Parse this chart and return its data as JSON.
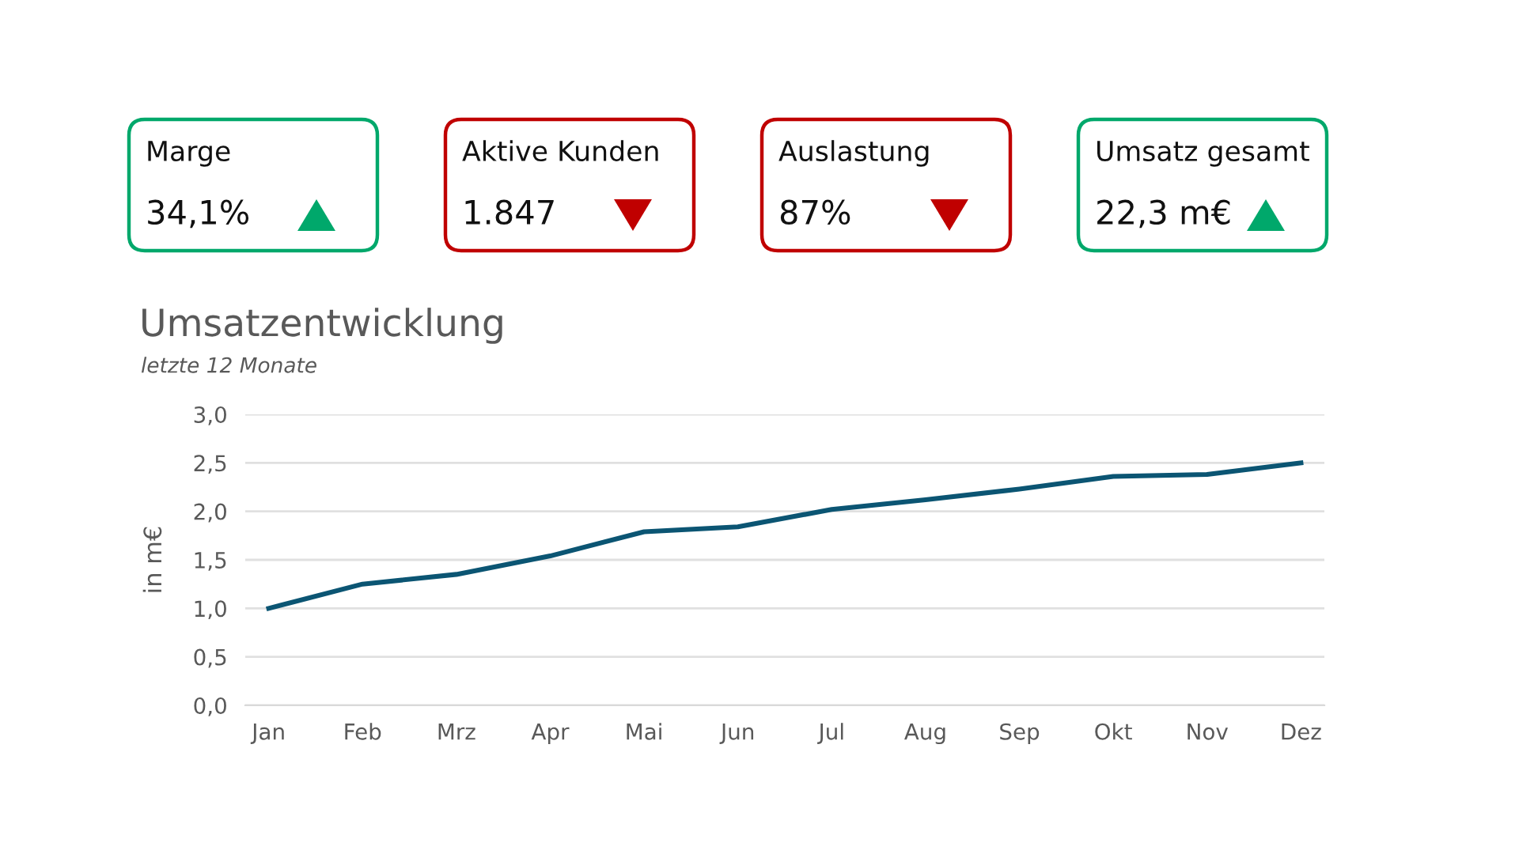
{
  "chart_data": [
    {
      "type": "other",
      "title": "Marge",
      "annotations": [
        "34,1%"
      ],
      "color": "#00a86b"
    },
    {
      "type": "other",
      "title": "Aktive Kunden",
      "annotations": [
        "1.847"
      ],
      "color": "#c00000"
    },
    {
      "type": "other",
      "title": "Auslastung",
      "annotations": [
        "87%"
      ],
      "color": "#c00000"
    },
    {
      "type": "other",
      "title": "Umsatz gesamt",
      "annotations": [
        "22,3 m€"
      ],
      "color": "#00a86b"
    },
    {
      "type": "line",
      "title": "Umsatzentwicklung",
      "subtitle": "letzte 12 Monate",
      "ylabel": "in m€",
      "categories": [
        "Jan",
        "Feb",
        "Mrz",
        "Apr",
        "Mai",
        "Jun",
        "Jul",
        "Aug",
        "Sep",
        "Okt",
        "Nov",
        "Dez"
      ],
      "series": [
        {
          "color": "#0b5573",
          "values": [
            1.0,
            1.25,
            1.35,
            1.54,
            1.79,
            1.84,
            2.02,
            2.12,
            2.23,
            2.36,
            2.38,
            2.5
          ]
        }
      ],
      "ylim": [
        0,
        3
      ],
      "yticks": [
        {
          "value": 0,
          "label": "0,0"
        },
        {
          "value": 0.5,
          "label": "0,5"
        },
        {
          "value": 1,
          "label": "1,0"
        },
        {
          "value": 1.5,
          "label": "1,5"
        },
        {
          "value": 2,
          "label": "2,0"
        },
        {
          "value": 2.5,
          "label": "2,5"
        },
        {
          "value": 3,
          "label": "3,0"
        }
      ],
      "grid": "y",
      "marker": "none",
      "line_style": "solid"
    }
  ]
}
